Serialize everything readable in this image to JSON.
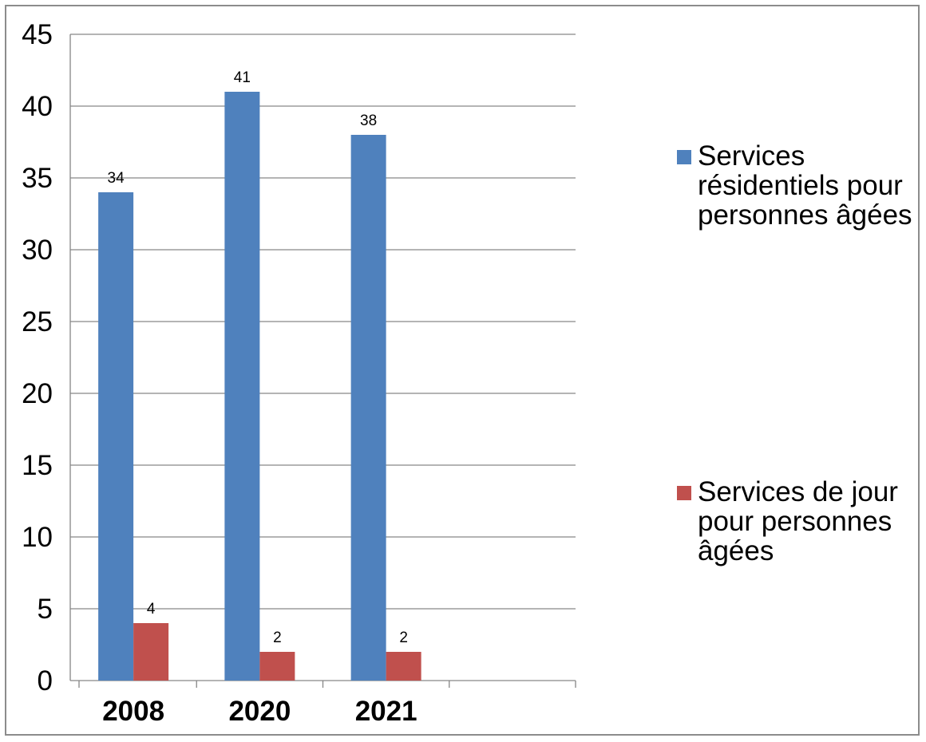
{
  "chart_data": {
    "type": "bar",
    "categories": [
      "2008",
      "2020",
      "2021",
      ""
    ],
    "series": [
      {
        "name": "Services résidentiels pour personnes âgées",
        "values": [
          34,
          41,
          38,
          null
        ],
        "color": "#4f81bd",
        "data_labels": [
          "34",
          "41",
          "38",
          ""
        ]
      },
      {
        "name": "Services de jour pour personnes âgées",
        "values": [
          4,
          2,
          2,
          null
        ],
        "color": "#c0504d",
        "data_labels": [
          "4",
          "2",
          "2",
          ""
        ]
      }
    ],
    "title": "",
    "xlabel": "",
    "ylabel": "",
    "ylim": [
      0,
      45
    ],
    "yticks": [
      "0",
      "5",
      "10",
      "15",
      "20",
      "25",
      "30",
      "35",
      "40",
      "45"
    ],
    "grid": true,
    "legend_position": "right",
    "colors": {
      "grid": "#868686",
      "axis": "#868686",
      "frame": "#8c8c8c"
    }
  }
}
